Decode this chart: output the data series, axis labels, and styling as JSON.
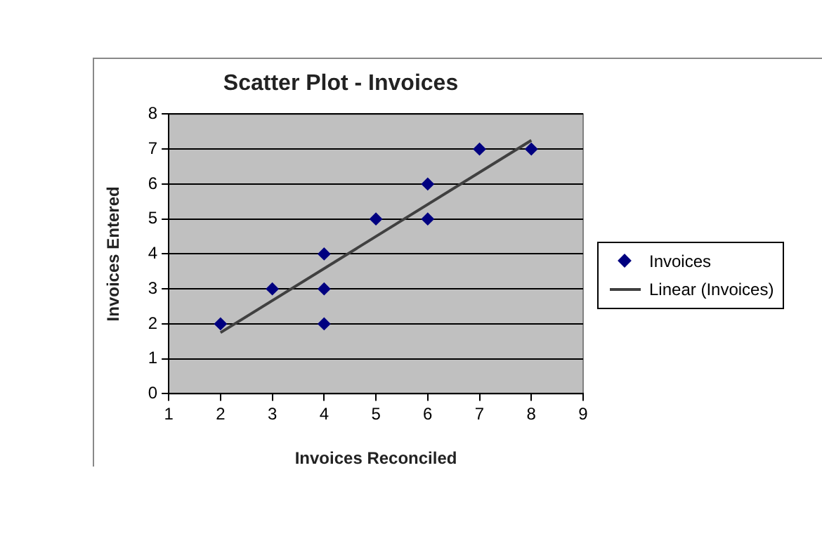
{
  "chart_data": {
    "type": "scatter",
    "title": "Scatter Plot - Invoices",
    "xlabel": "Invoices Reconciled",
    "ylabel": "Invoices Entered",
    "series": [
      {
        "name": "Invoices",
        "marker": "diamond",
        "color": "#000080",
        "x": [
          2,
          3,
          4,
          4,
          4,
          5,
          6,
          6,
          7,
          8
        ],
        "values": [
          2,
          3,
          4,
          3,
          2,
          5,
          6,
          5,
          7,
          7
        ]
      },
      {
        "name": "Linear (Invoices)",
        "type": "line",
        "marker": "none",
        "color": "#404040",
        "x": [
          2,
          8
        ],
        "values": [
          1.75,
          7.25
        ]
      }
    ],
    "xlim": [
      1,
      9
    ],
    "xticks": [
      1,
      2,
      3,
      4,
      5,
      6,
      7,
      8,
      9
    ],
    "ylim": [
      0,
      8
    ],
    "yticks": [
      0,
      1,
      2,
      3,
      4,
      5,
      6,
      7,
      8
    ],
    "grid": "y",
    "legend": "right",
    "line_style": "solid"
  }
}
